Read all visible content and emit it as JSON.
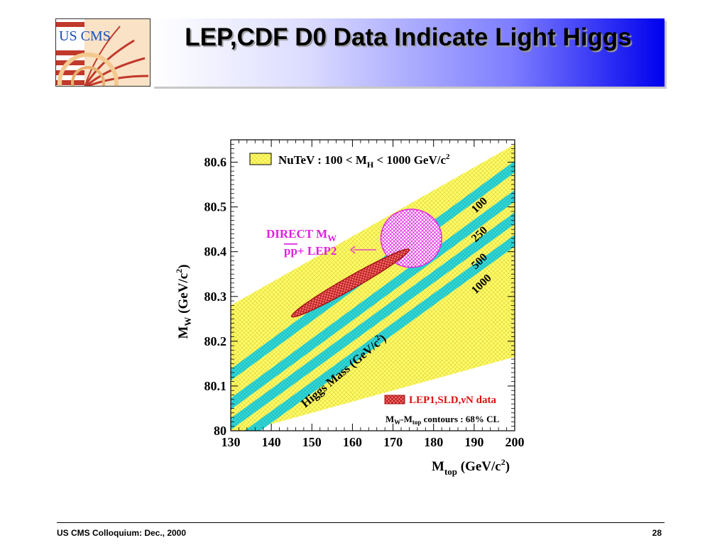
{
  "slide": {
    "title": "LEP,CDF D0 Data Indicate Light Higgs",
    "logo_text": "US CMS",
    "footer": "US CMS Colloquium: Dec., 2000",
    "page_number": "28"
  },
  "chart_data": {
    "type": "scatter",
    "xlabel": "Mtop (GeV/c2)",
    "ylabel": "MW (GeV/c2)",
    "xlim": [
      130,
      200
    ],
    "ylim": [
      80.0,
      80.65
    ],
    "x_ticks": [
      130,
      140,
      150,
      160,
      170,
      180,
      190,
      200
    ],
    "y_ticks": [
      80,
      80.1,
      80.2,
      80.3,
      80.4,
      80.5,
      80.6
    ],
    "y_tick_labels": [
      "80",
      "80.1",
      "80.2",
      "80.3",
      "80.4",
      "80.5",
      "80.6"
    ],
    "legend": {
      "nutev": "NuTeV : 100 < MH < 1000 GeV/c2",
      "lep1": "LEP1,SLD,νN data",
      "contours_note": "MW-Mtop contours : 68% CL"
    },
    "direct_label_line1": "DIRECT MW",
    "direct_label_line2": "pp+ LEP2",
    "higgs_band_label": "Higgs Mass (GeV/c2)",
    "nutev_band": {
      "lower": [
        [
          130,
          79.99
        ],
        [
          200,
          80.165
        ]
      ],
      "upper": [
        [
          130,
          80.28
        ],
        [
          200,
          80.64
        ]
      ]
    },
    "higgs_bands": [
      {
        "mh": "100",
        "y_at_130": 80.125,
        "y_at_200": 80.59
      },
      {
        "mh": "250",
        "y_at_130": 80.06,
        "y_at_200": 80.525
      },
      {
        "mh": "500",
        "y_at_130": 80.015,
        "y_at_200": 80.475
      },
      {
        "mh": "1000",
        "y_at_130": 79.965,
        "y_at_200": 80.425
      }
    ],
    "higgs_band_halfwidth": 0.013,
    "lep1_ellipse": {
      "cx": 159.5,
      "cy": 80.33,
      "rx_dx": 14.5,
      "rx_dy": 0.075,
      "ry_dx": 0.0,
      "ry_dy": 0.014
    },
    "direct_ellipse": {
      "cx": 174.5,
      "cy": 80.43,
      "rx": 7.5,
      "ry": 0.065
    }
  }
}
